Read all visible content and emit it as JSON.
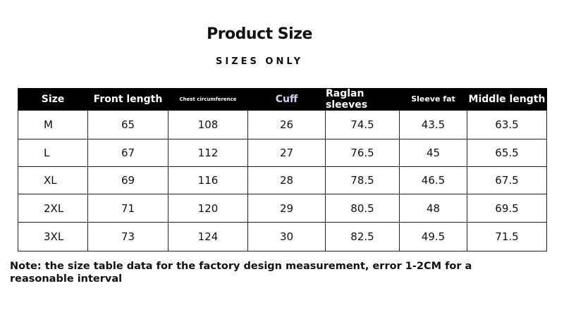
{
  "header": {
    "title": "Product Size",
    "subtitle": "SIZES ONLY"
  },
  "table": {
    "columns": [
      "Size",
      "Front length",
      "Chest circumference",
      "Cuff",
      "Raglan sleeves",
      "Sleeve fat",
      "Middle length"
    ],
    "rows": [
      [
        "M",
        65,
        108,
        26,
        74.5,
        43.5,
        63.5
      ],
      [
        "L",
        67,
        112,
        27,
        76.5,
        45,
        65.5
      ],
      [
        "XL",
        69,
        116,
        28,
        78.5,
        46.5,
        67.5
      ],
      [
        "2XL",
        71,
        120,
        29,
        80.5,
        48,
        69.5
      ],
      [
        "3XL",
        73,
        124,
        30,
        82.5,
        49.5,
        71.5
      ]
    ]
  },
  "note": "Note: the size table data for the factory design measurement, error 1-2CM for a reasonable interval"
}
